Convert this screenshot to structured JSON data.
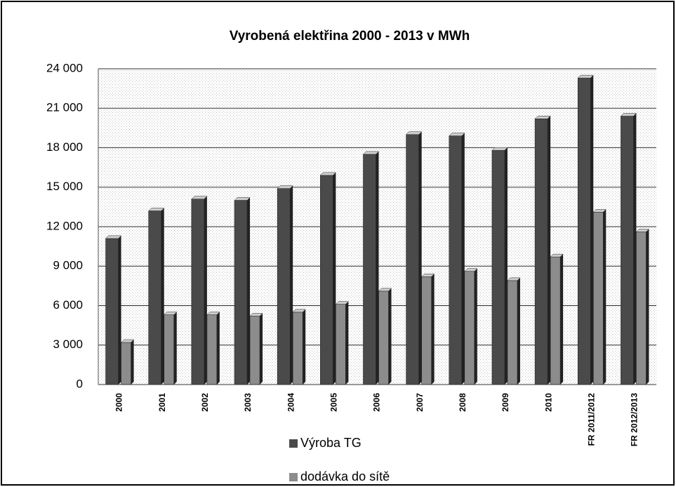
{
  "chart_data": {
    "type": "bar",
    "title": "Vyrobená elektřina 2000 - 2013 v MWh",
    "categories": [
      "2000",
      "2001",
      "2002",
      "2003",
      "2004",
      "2005",
      "2006",
      "2007",
      "2008",
      "2009",
      "2010",
      "FR 2011/2012",
      "FR 2012/2013"
    ],
    "series": [
      {
        "name": "Výroba TG",
        "color": "#4a4a4a",
        "values": [
          11100,
          13200,
          14100,
          14000,
          14900,
          15900,
          17500,
          19000,
          18900,
          17800,
          20200,
          23300,
          20400
        ]
      },
      {
        "name": "dodávka do sítě",
        "color": "#8c8c8c",
        "values": [
          3200,
          5300,
          5300,
          5200,
          5500,
          6100,
          7100,
          8200,
          8600,
          7900,
          9700,
          13100,
          11600
        ]
      }
    ],
    "ylim": [
      0,
      24000
    ],
    "yticks": [
      0,
      {
        "value": 3000,
        "label": "3 000"
      },
      {
        "value": 6000,
        "label": "6 000"
      },
      {
        "value": 9000,
        "label": "9 000"
      },
      {
        "value": 12000,
        "label": "12 000"
      },
      {
        "value": 15000,
        "label": "15 000"
      },
      {
        "value": 18000,
        "label": "18 000"
      },
      {
        "value": 21000,
        "label": "21 000"
      },
      {
        "value": 24000,
        "label": "24 000"
      }
    ],
    "grid": true
  }
}
